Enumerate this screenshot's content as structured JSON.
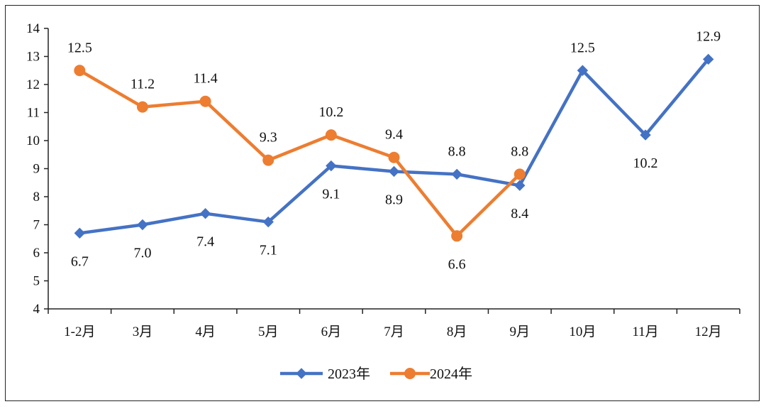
{
  "chart_data": {
    "type": "line",
    "title": "",
    "xlabel": "",
    "ylabel": "",
    "ylim": [
      4,
      14
    ],
    "yticks": [
      4,
      5,
      6,
      7,
      8,
      9,
      10,
      11,
      12,
      13,
      14
    ],
    "categories": [
      "1-2月",
      "3月",
      "4月",
      "5月",
      "6月",
      "7月",
      "8月",
      "9月",
      "10月",
      "11月",
      "12月"
    ],
    "grid": false,
    "legend_position": "bottom-center",
    "series": [
      {
        "name": "2023年",
        "color": "#4472C4",
        "marker": "diamond",
        "values": [
          6.7,
          7.0,
          7.4,
          7.1,
          9.1,
          8.9,
          8.8,
          8.4,
          12.5,
          10.2,
          12.9
        ],
        "labels": [
          "6.7",
          "7.0",
          "7.4",
          "7.1",
          "9.1",
          "8.9",
          "8.8",
          "8.4",
          "12.5",
          "10.2",
          "12.9"
        ],
        "label_positions": [
          "below",
          "below",
          "below",
          "below",
          "below",
          "below",
          "above",
          "below",
          "above",
          "below",
          "above"
        ]
      },
      {
        "name": "2024年",
        "color": "#ED7D31",
        "marker": "circle",
        "values": [
          12.5,
          11.2,
          11.4,
          9.3,
          10.2,
          9.4,
          6.6,
          8.8,
          null,
          null,
          null
        ],
        "labels": [
          "12.5",
          "11.2",
          "11.4",
          "9.3",
          "10.2",
          "9.4",
          "6.6",
          "8.8",
          null,
          null,
          null
        ],
        "label_positions": [
          "above",
          "above",
          "above",
          "above",
          "above",
          "above",
          "below",
          "above",
          null,
          null,
          null
        ]
      }
    ]
  }
}
